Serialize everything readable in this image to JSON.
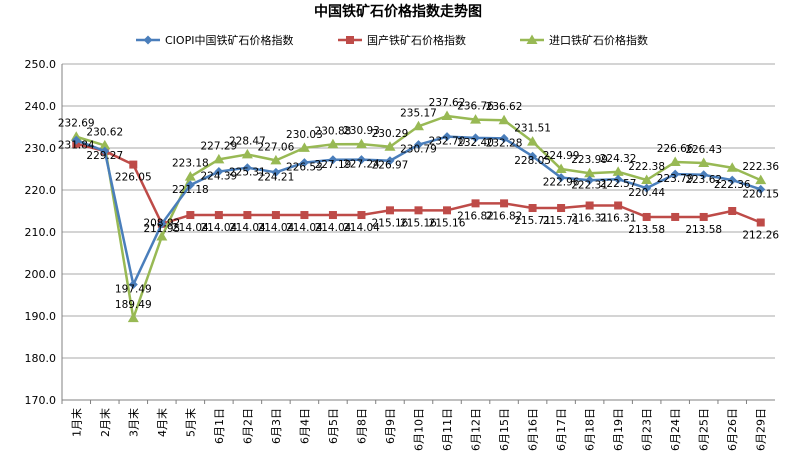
{
  "chart_data": {
    "type": "line",
    "title": "中国铁矿石价格指数走势图",
    "xlabel": "",
    "ylabel": "",
    "ylim": [
      170.0,
      250.0
    ],
    "yticks": [
      "250.0",
      "240.0",
      "230.0",
      "220.0",
      "210.0",
      "200.0",
      "190.0",
      "180.0",
      "170.0"
    ],
    "grid": true,
    "legend_position": "top",
    "categories": [
      "1月末",
      "2月末",
      "3月末",
      "4月末",
      "5月末",
      "6月1日",
      "6月2日",
      "6月3日",
      "6月4日",
      "6月5日",
      "6月8日",
      "6月9日",
      "6月10日",
      "6月11日",
      "6月12日",
      "6月15日",
      "6月16日",
      "6月17日",
      "6月18日",
      "6月19日",
      "6月23日",
      "6月24日",
      "6月25日",
      "6月26日",
      "6月29日"
    ],
    "series": [
      {
        "name": "CIOPI中国铁矿石价格指数",
        "color": "#4a7ebb",
        "marker": "diamond",
        "values": [
          231.84,
          229.27,
          197.49,
          211.95,
          221.18,
          224.39,
          225.31,
          224.21,
          226.53,
          227.19,
          227.24,
          226.97,
          230.79,
          232.7,
          232.4,
          232.28,
          228.05,
          222.96,
          222.31,
          222.57,
          220.44,
          223.79,
          223.62,
          222.36,
          220.15
        ],
        "labels": [
          "231.84",
          "229.27",
          "197.49",
          "211.95",
          "221.18",
          "224.39",
          "225.31",
          "224.21",
          "226.53",
          "227.19",
          "227.24",
          "226.97",
          "230.79",
          "232.70",
          "232.40",
          "232.28",
          "228.05",
          "222.96",
          "222.31",
          "222.57",
          "220.44",
          "223.79",
          "223.62",
          "222.36",
          "220.15"
        ]
      },
      {
        "name": "国产铁矿石价格指数",
        "color": "#be4b48",
        "marker": "square",
        "values": [
          231.0,
          229.27,
          226.05,
          211.95,
          214.04,
          214.04,
          214.04,
          214.04,
          214.04,
          214.04,
          214.04,
          215.16,
          215.16,
          215.16,
          216.82,
          216.82,
          215.71,
          215.71,
          216.31,
          216.31,
          213.58,
          213.58,
          213.58,
          215.0,
          212.26
        ],
        "labels": [
          "",
          "",
          "226.05",
          "",
          "214.04",
          "214.04",
          "214.04",
          "214.04",
          "214.04",
          "214.04",
          "214.04",
          "215.16",
          "215.16",
          "215.16",
          "216.82",
          "216.82",
          "215.71",
          "215.71",
          "216.31",
          "216.31",
          "213.58",
          "",
          "213.58",
          "",
          "212.26"
        ]
      },
      {
        "name": "进口铁矿石价格指数",
        "color": "#98b954",
        "marker": "triangle",
        "values": [
          232.69,
          230.62,
          189.49,
          208.92,
          223.18,
          227.29,
          228.47,
          227.06,
          230.03,
          230.88,
          230.93,
          230.29,
          235.17,
          237.62,
          236.76,
          236.62,
          231.51,
          224.99,
          223.99,
          224.32,
          222.38,
          226.66,
          226.43,
          225.3,
          222.36
        ],
        "labels": [
          "232.69",
          "230.62",
          "189.49",
          "208.92",
          "223.18",
          "227.29",
          "228.47",
          "227.06",
          "230.03",
          "230.88",
          "230.93",
          "230.29",
          "235.17",
          "237.62",
          "236.76",
          "236.62",
          "231.51",
          "224.99",
          "223.99",
          "224.32",
          "222.38",
          "226.66",
          "226.43",
          "",
          "222.36"
        ]
      }
    ]
  }
}
